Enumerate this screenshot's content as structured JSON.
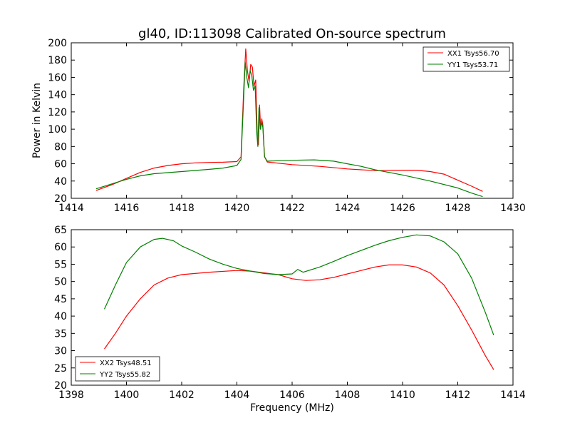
{
  "chart_data": [
    {
      "type": "line",
      "title": "gl40, ID:113098 Calibrated On-source spectrum",
      "xlabel": "",
      "ylabel": "Power in Kelvin",
      "xlim": [
        1414,
        1430
      ],
      "ylim": [
        20,
        200
      ],
      "xticks": [
        1414,
        1416,
        1418,
        1420,
        1422,
        1424,
        1426,
        1428,
        1430
      ],
      "yticks": [
        20,
        40,
        60,
        80,
        100,
        120,
        140,
        160,
        180,
        200
      ],
      "grid": false,
      "legend_position": "top-right",
      "series": [
        {
          "name": "XX1 Tsys56.70",
          "color": "#ff0000",
          "points": [
            [
              1414.9,
              29
            ],
            [
              1415.5,
              36
            ],
            [
              1416.0,
              43
            ],
            [
              1416.5,
              50
            ],
            [
              1417.0,
              55
            ],
            [
              1417.5,
              58
            ],
            [
              1418.0,
              60
            ],
            [
              1418.5,
              61
            ],
            [
              1419.0,
              61.5
            ],
            [
              1419.5,
              61.8
            ],
            [
              1420.0,
              62.5
            ],
            [
              1420.15,
              68
            ],
            [
              1420.25,
              150
            ],
            [
              1420.32,
              193
            ],
            [
              1420.38,
              168
            ],
            [
              1420.44,
              155
            ],
            [
              1420.5,
              175
            ],
            [
              1420.56,
              172
            ],
            [
              1420.62,
              150
            ],
            [
              1420.68,
              157
            ],
            [
              1420.74,
              90
            ],
            [
              1420.78,
              82
            ],
            [
              1420.82,
              128
            ],
            [
              1420.86,
              100
            ],
            [
              1420.9,
              112
            ],
            [
              1420.94,
              105
            ],
            [
              1421.0,
              68
            ],
            [
              1421.1,
              62
            ],
            [
              1422.0,
              59
            ],
            [
              1423.0,
              57
            ],
            [
              1424.0,
              54
            ],
            [
              1425.0,
              52
            ],
            [
              1426.0,
              52.5
            ],
            [
              1426.5,
              52.5
            ],
            [
              1427.0,
              51
            ],
            [
              1427.5,
              48
            ],
            [
              1428.0,
              41
            ],
            [
              1428.5,
              34
            ],
            [
              1428.9,
              28
            ]
          ]
        },
        {
          "name": "YY1 Tsys53.71",
          "color": "#008000",
          "points": [
            [
              1414.9,
              31
            ],
            [
              1415.5,
              37
            ],
            [
              1416.0,
              42
            ],
            [
              1416.5,
              46
            ],
            [
              1417.0,
              48.5
            ],
            [
              1418.0,
              51
            ],
            [
              1419.0,
              53.5
            ],
            [
              1419.5,
              55
            ],
            [
              1420.0,
              58
            ],
            [
              1420.15,
              65
            ],
            [
              1420.25,
              140
            ],
            [
              1420.3,
              178
            ],
            [
              1420.36,
              160
            ],
            [
              1420.42,
              148
            ],
            [
              1420.48,
              168
            ],
            [
              1420.54,
              162
            ],
            [
              1420.6,
              145
            ],
            [
              1420.66,
              150
            ],
            [
              1420.72,
              95
            ],
            [
              1420.76,
              80
            ],
            [
              1420.8,
              125
            ],
            [
              1420.85,
              100
            ],
            [
              1420.9,
              108
            ],
            [
              1420.94,
              102
            ],
            [
              1421.0,
              68
            ],
            [
              1421.1,
              63
            ],
            [
              1422.0,
              64
            ],
            [
              1422.8,
              64.5
            ],
            [
              1423.5,
              63
            ],
            [
              1424.0,
              60
            ],
            [
              1424.5,
              57
            ],
            [
              1425.0,
              53
            ],
            [
              1426.0,
              47
            ],
            [
              1427.0,
              40
            ],
            [
              1428.0,
              32
            ],
            [
              1428.5,
              26
            ],
            [
              1428.9,
              22
            ]
          ]
        }
      ]
    },
    {
      "type": "line",
      "title": "",
      "xlabel": "Frequency (MHz)",
      "ylabel": "",
      "xlim": [
        1398,
        1414
      ],
      "ylim": [
        20,
        65
      ],
      "xticks": [
        1398,
        1400,
        1402,
        1404,
        1406,
        1408,
        1410,
        1412,
        1414
      ],
      "yticks": [
        20,
        25,
        30,
        35,
        40,
        45,
        50,
        55,
        60,
        65
      ],
      "grid": false,
      "legend_position": "bottom-left",
      "series": [
        {
          "name": "XX2 Tsys48.51",
          "color": "#ff0000",
          "points": [
            [
              1399.2,
              30.5
            ],
            [
              1399.6,
              35
            ],
            [
              1400.0,
              40
            ],
            [
              1400.5,
              45
            ],
            [
              1401.0,
              49
            ],
            [
              1401.5,
              51
            ],
            [
              1402.0,
              52
            ],
            [
              1403.0,
              52.7
            ],
            [
              1404.0,
              53.2
            ],
            [
              1404.5,
              53
            ],
            [
              1405.0,
              52.5
            ],
            [
              1405.5,
              52
            ],
            [
              1406.0,
              50.8
            ],
            [
              1406.5,
              50.3
            ],
            [
              1407.0,
              50.5
            ],
            [
              1407.5,
              51.2
            ],
            [
              1408.0,
              52.2
            ],
            [
              1408.5,
              53.2
            ],
            [
              1409.0,
              54.2
            ],
            [
              1409.5,
              54.8
            ],
            [
              1410.0,
              54.8
            ],
            [
              1410.5,
              54.2
            ],
            [
              1411.0,
              52.5
            ],
            [
              1411.5,
              49
            ],
            [
              1412.0,
              43
            ],
            [
              1412.5,
              36
            ],
            [
              1413.0,
              28.5
            ],
            [
              1413.3,
              24.5
            ]
          ]
        },
        {
          "name": "YY2 Tsys55.82",
          "color": "#008000",
          "points": [
            [
              1399.2,
              42
            ],
            [
              1399.6,
              49
            ],
            [
              1400.0,
              55.5
            ],
            [
              1400.5,
              60
            ],
            [
              1401.0,
              62.2
            ],
            [
              1401.3,
              62.5
            ],
            [
              1401.7,
              61.8
            ],
            [
              1402.0,
              60.3
            ],
            [
              1402.5,
              58.5
            ],
            [
              1403.0,
              56.5
            ],
            [
              1403.5,
              55
            ],
            [
              1404.0,
              53.8
            ],
            [
              1404.5,
              53
            ],
            [
              1405.0,
              52.3
            ],
            [
              1405.5,
              52
            ],
            [
              1406.0,
              52.2
            ],
            [
              1406.2,
              53.5
            ],
            [
              1406.4,
              52.7
            ],
            [
              1407.0,
              54.2
            ],
            [
              1407.5,
              55.8
            ],
            [
              1408.0,
              57.5
            ],
            [
              1408.5,
              59
            ],
            [
              1409.0,
              60.5
            ],
            [
              1409.5,
              61.8
            ],
            [
              1410.0,
              62.8
            ],
            [
              1410.5,
              63.5
            ],
            [
              1411.0,
              63.2
            ],
            [
              1411.5,
              61.5
            ],
            [
              1412.0,
              58
            ],
            [
              1412.5,
              51
            ],
            [
              1413.0,
              41
            ],
            [
              1413.3,
              34.5
            ]
          ]
        }
      ]
    }
  ]
}
